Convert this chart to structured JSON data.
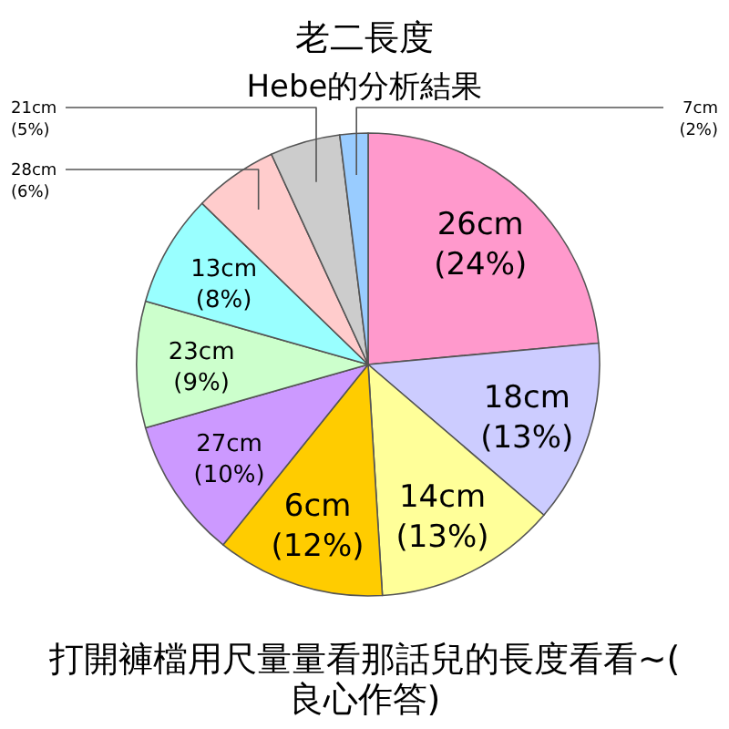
{
  "chart_data": {
    "type": "pie",
    "title": "老二長度",
    "subtitle": "Hebe的分析結果",
    "categories": [
      "26cm",
      "18cm",
      "14cm",
      "6cm",
      "27cm",
      "23cm",
      "13cm",
      "28cm",
      "21cm",
      "7cm"
    ],
    "values": [
      24,
      13,
      13,
      12,
      10,
      9,
      8,
      6,
      5,
      2
    ],
    "value_labels": [
      "(24%)",
      "(13%)",
      "(13%)",
      "(12%)",
      "(10%)",
      "(9%)",
      "(8%)",
      "(6%)",
      "(5%)",
      "(2%)"
    ],
    "colors": [
      "#ff99cc",
      "#ccccff",
      "#ffff99",
      "#ffcc00",
      "#cc99ff",
      "#ccffcc",
      "#99ffff",
      "#ffcccc",
      "#cccccc",
      "#99ccff"
    ],
    "annotations": [
      "打開褲檔用尺量量看那話兒的長度看看~(良心作答)"
    ]
  }
}
